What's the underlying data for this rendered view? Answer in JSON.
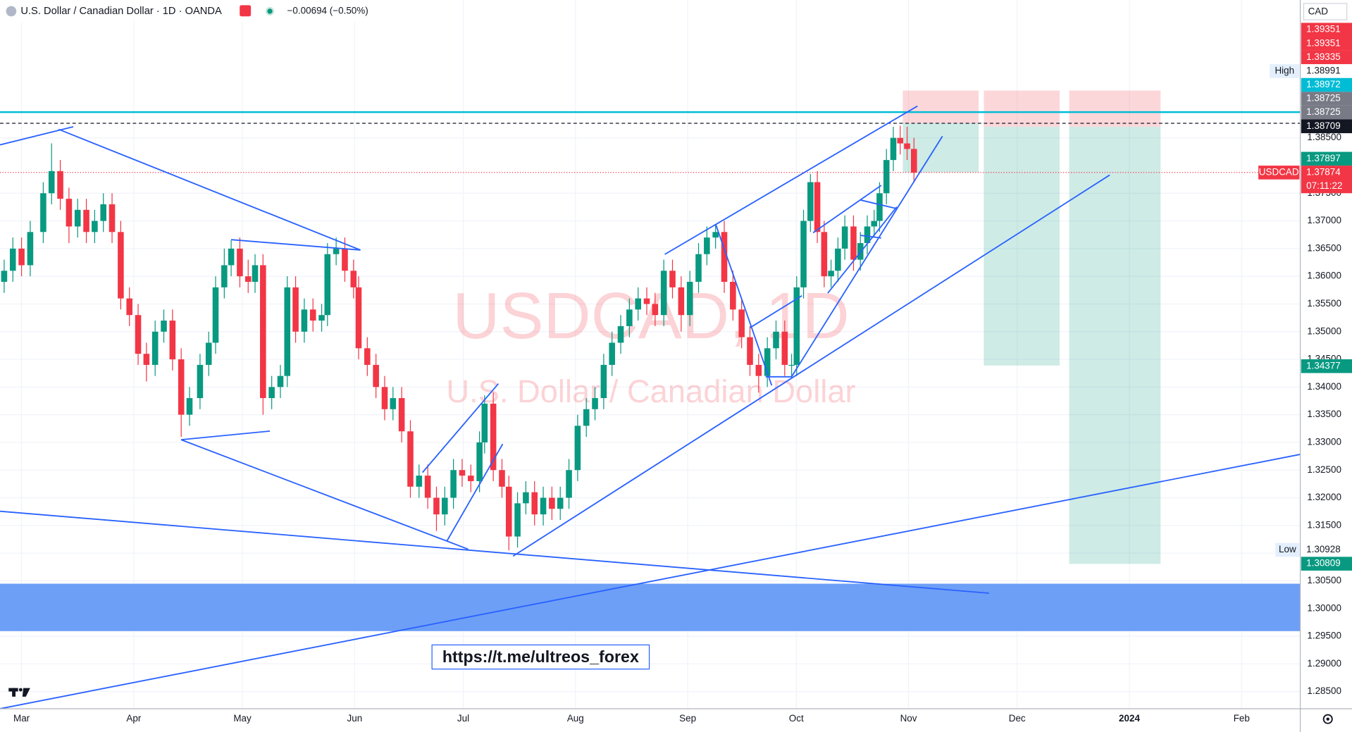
{
  "header": {
    "symbol": "U.S. Dollar / Canadian Dollar · 1D · OANDA",
    "change": "−0.00694 (−0.50%)"
  },
  "chart_data": {
    "type": "candlestick",
    "title": "USDCAD, 1D",
    "subtitle": "U.S. Dollar / Canadian Dollar",
    "currency": "CAD",
    "annotation": "https://t.me/ultreos_forex",
    "up_color": "#089981",
    "down_color": "#f23645",
    "grid": true,
    "xlim": [
      53.05,
      412.2
    ],
    "ylim": [
      1.2819,
      1.4099
    ],
    "xticks": [
      {
        "value": 59,
        "label": "Mar"
      },
      {
        "value": 90,
        "label": "Apr"
      },
      {
        "value": 120,
        "label": "May"
      },
      {
        "value": 151,
        "label": "Jun"
      },
      {
        "value": 181,
        "label": "Jul"
      },
      {
        "value": 212,
        "label": "Aug"
      },
      {
        "value": 243,
        "label": "Sep"
      },
      {
        "value": 273,
        "label": "Oct"
      },
      {
        "value": 304,
        "label": "Nov"
      },
      {
        "value": 334,
        "label": "Dec"
      },
      {
        "value": 365,
        "label": "2024",
        "bold": true
      },
      {
        "value": 396,
        "label": "Feb"
      }
    ],
    "yticks": [
      {
        "value": 1.285,
        "label": "1.28500"
      },
      {
        "value": 1.29,
        "label": "1.29000"
      },
      {
        "value": 1.295,
        "label": "1.29500"
      },
      {
        "value": 1.3,
        "label": "1.30000"
      },
      {
        "value": 1.305,
        "label": "1.30500"
      },
      {
        "value": 1.31,
        "label": "1.31000"
      },
      {
        "value": 1.315,
        "label": "1.31500"
      },
      {
        "value": 1.32,
        "label": "1.32000"
      },
      {
        "value": 1.325,
        "label": "1.32500"
      },
      {
        "value": 1.33,
        "label": "1.33000"
      },
      {
        "value": 1.335,
        "label": "1.33500"
      },
      {
        "value": 1.34,
        "label": "1.34000"
      },
      {
        "value": 1.345,
        "label": "1.34500"
      },
      {
        "value": 1.35,
        "label": "1.35000"
      },
      {
        "value": 1.355,
        "label": "1.35500"
      },
      {
        "value": 1.36,
        "label": "1.36000"
      },
      {
        "value": 1.365,
        "label": "1.36500"
      },
      {
        "value": 1.37,
        "label": "1.37000"
      },
      {
        "value": 1.375,
        "label": "1.37500"
      },
      {
        "value": 1.385,
        "label": "1.38500"
      }
    ],
    "x": [
      54.2,
      56.6,
      59.0,
      61.4,
      65.0,
      67.3,
      69.7,
      72.1,
      74.5,
      76.9,
      79.2,
      81.6,
      84.0,
      86.4,
      88.8,
      91.2,
      93.5,
      95.9,
      98.3,
      100.7,
      103.1,
      105.4,
      108.3,
      110.7,
      112.6,
      115.0,
      116.9,
      119.3,
      121.6,
      123.5,
      125.7,
      128.1,
      130.5,
      132.4,
      134.7,
      137.1,
      139.5,
      141.9,
      143.5,
      145.9,
      148.3,
      150.7,
      152.1,
      154.5,
      156.9,
      159.3,
      161.6,
      164.0,
      166.4,
      168.8,
      171.2,
      173.6,
      175.9,
      178.3,
      180.7,
      183.1,
      185.5,
      186.9,
      189.3,
      191.7,
      193.6,
      196.0,
      198.3,
      200.7,
      203.1,
      205.5,
      207.8,
      210.2,
      212.6,
      215.0,
      217.4,
      219.8,
      222.1,
      224.5,
      226.9,
      229.3,
      231.7,
      234.0,
      236.4,
      238.8,
      241.2,
      243.6,
      246.0,
      248.3,
      250.7,
      253.1,
      255.5,
      257.9,
      260.2,
      262.6,
      265.0,
      267.4,
      269.8,
      271.7,
      273.1,
      275.0,
      276.9,
      278.8,
      280.7,
      282.6,
      284.5,
      286.4,
      288.8,
      290.7,
      292.6,
      294.5,
      296.0,
      297.9,
      299.8,
      301.7,
      303.6,
      305.5
    ],
    "open": [
      1.359,
      1.361,
      1.365,
      1.362,
      1.368,
      1.375,
      1.379,
      1.374,
      1.369,
      1.372,
      1.368,
      1.37,
      1.373,
      1.368,
      1.356,
      1.353,
      1.346,
      1.344,
      1.35,
      1.352,
      1.345,
      1.335,
      1.338,
      1.344,
      1.348,
      1.358,
      1.362,
      1.365,
      1.36,
      1.359,
      1.362,
      1.338,
      1.34,
      1.342,
      1.358,
      1.35,
      1.354,
      1.352,
      1.353,
      1.364,
      1.365,
      1.361,
      1.358,
      1.347,
      1.344,
      1.34,
      1.336,
      1.338,
      1.332,
      1.322,
      1.324,
      1.32,
      1.317,
      1.32,
      1.325,
      1.324,
      1.323,
      1.33,
      1.337,
      1.325,
      1.322,
      1.313,
      1.319,
      1.321,
      1.317,
      1.32,
      1.318,
      1.32,
      1.325,
      1.333,
      1.336,
      1.338,
      1.344,
      1.348,
      1.351,
      1.354,
      1.356,
      1.355,
      1.353,
      1.361,
      1.358,
      1.353,
      1.359,
      1.364,
      1.367,
      1.368,
      1.359,
      1.354,
      1.349,
      1.344,
      1.342,
      1.347,
      1.35,
      1.344,
      1.344,
      1.358,
      1.37,
      1.377,
      1.368,
      1.36,
      1.361,
      1.365,
      1.369,
      1.363,
      1.366,
      1.369,
      1.37,
      1.375,
      1.381,
      1.385,
      1.384,
      1.383
    ],
    "high": [
      1.363,
      1.367,
      1.367,
      1.37,
      1.377,
      1.384,
      1.381,
      1.376,
      1.374,
      1.374,
      1.372,
      1.375,
      1.375,
      1.37,
      1.358,
      1.355,
      1.348,
      1.352,
      1.354,
      1.354,
      1.347,
      1.34,
      1.346,
      1.35,
      1.36,
      1.365,
      1.3665,
      1.367,
      1.363,
      1.364,
      1.364,
      1.342,
      1.344,
      1.36,
      1.36,
      1.356,
      1.356,
      1.355,
      1.366,
      1.367,
      1.367,
      1.363,
      1.36,
      1.349,
      1.346,
      1.342,
      1.34,
      1.34,
      1.334,
      1.326,
      1.326,
      1.322,
      1.322,
      1.327,
      1.327,
      1.326,
      1.332,
      1.3385,
      1.339,
      1.327,
      1.324,
      1.321,
      1.323,
      1.323,
      1.322,
      1.322,
      1.322,
      1.327,
      1.335,
      1.338,
      1.34,
      1.346,
      1.35,
      1.353,
      1.356,
      1.358,
      1.358,
      1.357,
      1.363,
      1.363,
      1.36,
      1.361,
      1.366,
      1.369,
      1.3694,
      1.37,
      1.361,
      1.356,
      1.351,
      1.346,
      1.349,
      1.352,
      1.352,
      1.346,
      1.36,
      1.372,
      1.3785,
      1.379,
      1.37,
      1.363,
      1.367,
      1.371,
      1.371,
      1.368,
      1.371,
      1.372,
      1.377,
      1.383,
      1.387,
      1.3872,
      1.387,
      1.385
    ],
    "low": [
      1.357,
      1.359,
      1.36,
      1.36,
      1.366,
      1.373,
      1.372,
      1.366,
      1.367,
      1.366,
      1.366,
      1.368,
      1.366,
      1.354,
      1.351,
      1.344,
      1.341,
      1.342,
      1.348,
      1.343,
      1.331,
      1.333,
      1.336,
      1.342,
      1.346,
      1.356,
      1.36,
      1.358,
      1.357,
      1.357,
      1.335,
      1.336,
      1.338,
      1.34,
      1.348,
      1.348,
      1.35,
      1.35,
      1.351,
      1.362,
      1.359,
      1.356,
      1.345,
      1.342,
      1.338,
      1.334,
      1.334,
      1.33,
      1.32,
      1.32,
      1.318,
      1.314,
      1.315,
      1.318,
      1.322,
      1.321,
      1.321,
      1.328,
      1.323,
      1.32,
      1.3105,
      1.311,
      1.317,
      1.315,
      1.315,
      1.316,
      1.316,
      1.318,
      1.323,
      1.331,
      1.334,
      1.336,
      1.342,
      1.346,
      1.349,
      1.352,
      1.353,
      1.351,
      1.351,
      1.356,
      1.35,
      1.351,
      1.357,
      1.362,
      1.365,
      1.357,
      1.352,
      1.347,
      1.342,
      1.339,
      1.34,
      1.345,
      1.342,
      1.3415,
      1.342,
      1.356,
      1.368,
      1.366,
      1.358,
      1.358,
      1.359,
      1.363,
      1.361,
      1.361,
      1.364,
      1.367,
      1.368,
      1.373,
      1.379,
      1.382,
      1.381,
      1.377
    ],
    "close": [
      1.361,
      1.365,
      1.362,
      1.368,
      1.375,
      1.379,
      1.374,
      1.369,
      1.372,
      1.368,
      1.37,
      1.373,
      1.368,
      1.356,
      1.353,
      1.346,
      1.344,
      1.35,
      1.352,
      1.345,
      1.335,
      1.338,
      1.344,
      1.348,
      1.358,
      1.362,
      1.365,
      1.36,
      1.359,
      1.362,
      1.338,
      1.34,
      1.342,
      1.358,
      1.35,
      1.354,
      1.352,
      1.353,
      1.364,
      1.365,
      1.361,
      1.358,
      1.347,
      1.344,
      1.34,
      1.336,
      1.338,
      1.332,
      1.322,
      1.324,
      1.32,
      1.317,
      1.32,
      1.325,
      1.324,
      1.323,
      1.33,
      1.337,
      1.325,
      1.322,
      1.313,
      1.319,
      1.321,
      1.317,
      1.32,
      1.318,
      1.32,
      1.325,
      1.333,
      1.336,
      1.338,
      1.344,
      1.348,
      1.351,
      1.354,
      1.356,
      1.355,
      1.353,
      1.361,
      1.358,
      1.353,
      1.359,
      1.364,
      1.367,
      1.368,
      1.359,
      1.354,
      1.349,
      1.344,
      1.342,
      1.347,
      1.35,
      1.344,
      1.344,
      1.358,
      1.37,
      1.377,
      1.368,
      1.36,
      1.361,
      1.365,
      1.369,
      1.363,
      1.366,
      1.369,
      1.37,
      1.375,
      1.381,
      1.385,
      1.384,
      1.383,
      1.3787
    ],
    "price_tags": [
      {
        "value": 1.39351,
        "color": "#f23645"
      },
      {
        "value": 1.39351,
        "color": "#f23645"
      },
      {
        "value": 1.39335,
        "color": "#f23645"
      },
      {
        "value": 1.38991,
        "color": "#ffffff",
        "side_label": "High"
      },
      {
        "value": 1.38972,
        "color": "#00bcd4"
      },
      {
        "value": 1.38725,
        "color": "#787b86"
      },
      {
        "value": 1.38725,
        "color": "#787b86"
      },
      {
        "value": 1.38709,
        "color": "#131722"
      },
      {
        "value": 1.37897,
        "color": "#089981"
      },
      {
        "value": 1.37874,
        "color": "#f23645",
        "side_label": "USDCAD",
        "countdown": "07:11:22"
      },
      {
        "value": 1.34377,
        "color": "#089981"
      },
      {
        "value": 1.30928,
        "color": "#ffffff",
        "side_label": "Low"
      },
      {
        "value": 1.30809,
        "color": "#089981"
      }
    ]
  }
}
